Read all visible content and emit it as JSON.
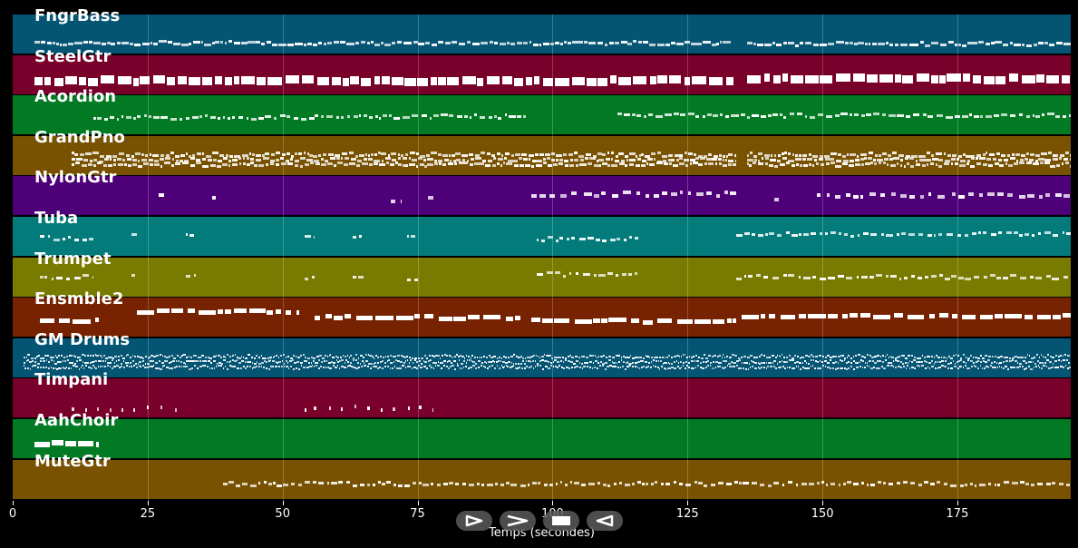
{
  "axis": {
    "xlabel": "Temps (secondes)",
    "xmax": 196,
    "ticks": [
      "0",
      "25",
      "50",
      "75",
      "100",
      "125",
      "150",
      "175"
    ],
    "grid": true
  },
  "tracks": [
    {
      "label": "FngrBass",
      "color": "#045474",
      "texture": "bass"
    },
    {
      "label": "SteelGtr",
      "color": "#78002a",
      "texture": "steel"
    },
    {
      "label": "Acordion",
      "color": "#027a23",
      "texture": "acordion"
    },
    {
      "label": "GrandPno",
      "color": "#785200",
      "texture": "piano"
    },
    {
      "label": "NylonGtr",
      "color": "#4e0079",
      "texture": "nylon"
    },
    {
      "label": "Tuba",
      "color": "#027b7a",
      "texture": "tuba"
    },
    {
      "label": "Trumpet",
      "color": "#797b00",
      "texture": "trumpet"
    },
    {
      "label": "Ensmble2",
      "color": "#772201",
      "texture": "ensemble"
    },
    {
      "label": "GM Drums",
      "color": "#045474",
      "texture": "drums"
    },
    {
      "label": "Timpani",
      "color": "#78002a",
      "texture": "timpani"
    },
    {
      "label": "AahChoir",
      "color": "#027a23",
      "texture": "choir"
    },
    {
      "label": "MuteGtr",
      "color": "#785200",
      "texture": "mute"
    }
  ],
  "controls": [
    {
      "name": "play-button",
      "icon": "play-outline-icon"
    },
    {
      "name": "forward-button",
      "icon": "chevron-right-icon"
    },
    {
      "name": "stop-button",
      "icon": "stop-square-icon"
    },
    {
      "name": "rewind-button",
      "icon": "rewind-triangle-icon"
    }
  ]
}
